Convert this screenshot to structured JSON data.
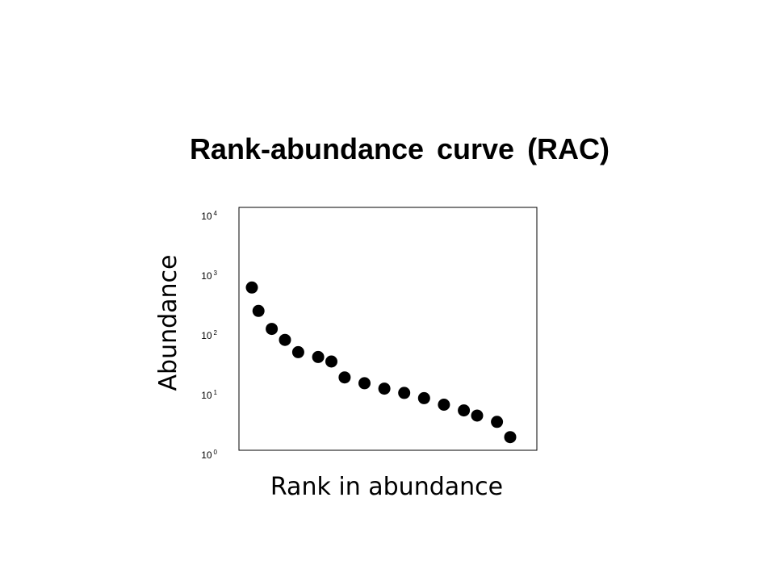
{
  "chart_data": {
    "type": "scatter",
    "title": "Rank-abundance curve (RAC)",
    "xlabel": "Rank in abundance",
    "ylabel": "Abundance",
    "y_scale": "log",
    "ylim": [
      1,
      10000
    ],
    "y_ticks": [
      {
        "base": "10",
        "exp": "4",
        "value": 10000
      },
      {
        "base": "10",
        "exp": "3",
        "value": 1000
      },
      {
        "base": "10",
        "exp": "2",
        "value": 100
      },
      {
        "base": "10",
        "exp": "1",
        "value": 10
      },
      {
        "base": "10",
        "exp": "0",
        "value": 1
      }
    ],
    "x_ticks_shown": false,
    "grid": false,
    "marker_color": "#000000",
    "series": [
      {
        "x": [
          1,
          1.5,
          2.5,
          3.5,
          4.5,
          6,
          7,
          8,
          9.5,
          11,
          12.5,
          14,
          15.5,
          17,
          18,
          19.5,
          20.5
        ],
        "y": [
          640,
          260,
          130,
          85,
          53,
          44,
          37,
          20,
          16,
          13,
          11,
          9,
          7,
          5.6,
          4.6,
          3.6,
          2.0
        ]
      }
    ]
  }
}
